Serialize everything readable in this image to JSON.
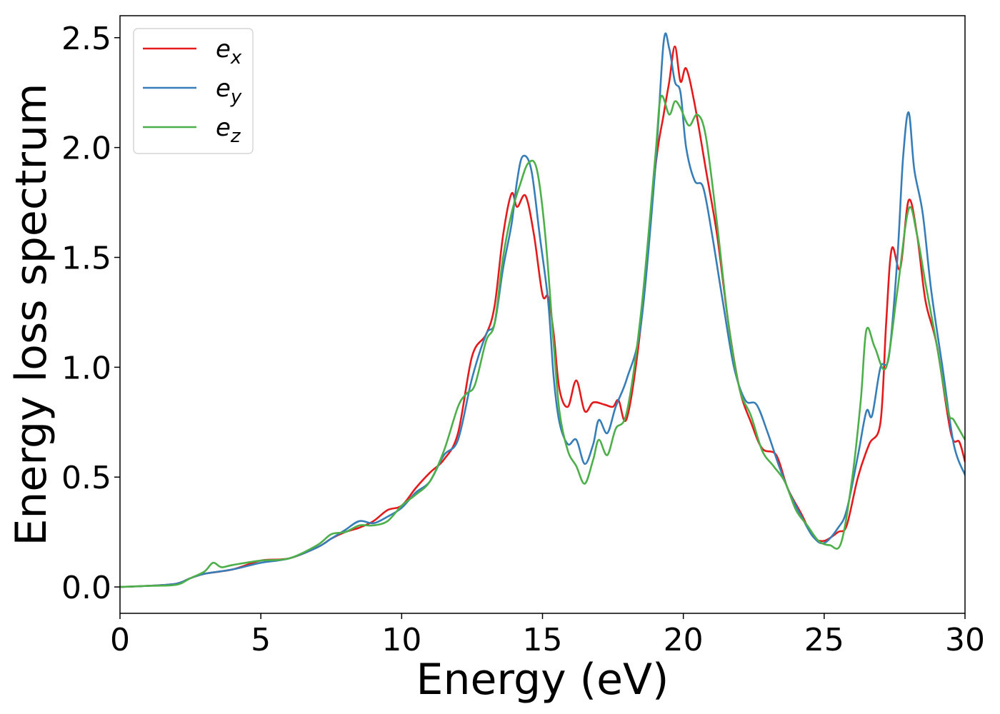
{
  "chart_data": {
    "type": "line",
    "xlabel": "Energy (eV)",
    "ylabel": "Energy loss spectrum",
    "xlim": [
      0,
      30
    ],
    "ylim": [
      -0.12,
      2.6
    ],
    "x_ticks": [
      0,
      5,
      10,
      15,
      20,
      25,
      30
    ],
    "x_tick_labels": [
      "0",
      "5",
      "10",
      "15",
      "20",
      "25",
      "30"
    ],
    "y_ticks": [
      0.0,
      0.5,
      1.0,
      1.5,
      2.0,
      2.5
    ],
    "y_tick_labels": [
      "0.0",
      "0.5",
      "1.0",
      "1.5",
      "2.0",
      "2.5"
    ],
    "grid": false,
    "legend_position": "top-left",
    "series": [
      {
        "name": "e_x",
        "label_base": "e",
        "label_sub": "x",
        "color": "#e41a1c",
        "points": [
          [
            0,
            0
          ],
          [
            1,
            0.005
          ],
          [
            2,
            0.015
          ],
          [
            2.5,
            0.04
          ],
          [
            3,
            0.06
          ],
          [
            4,
            0.08
          ],
          [
            5,
            0.12
          ],
          [
            6,
            0.13
          ],
          [
            7,
            0.18
          ],
          [
            7.5,
            0.22
          ],
          [
            8,
            0.25
          ],
          [
            8.5,
            0.27
          ],
          [
            9,
            0.3
          ],
          [
            9.5,
            0.35
          ],
          [
            10,
            0.37
          ],
          [
            10.5,
            0.45
          ],
          [
            11,
            0.52
          ],
          [
            11.5,
            0.58
          ],
          [
            12,
            0.7
          ],
          [
            12.5,
            1.05
          ],
          [
            13,
            1.15
          ],
          [
            13.3,
            1.28
          ],
          [
            13.6,
            1.6
          ],
          [
            13.9,
            1.79
          ],
          [
            14.1,
            1.73
          ],
          [
            14.4,
            1.78
          ],
          [
            14.7,
            1.6
          ],
          [
            15,
            1.33
          ],
          [
            15.2,
            1.32
          ],
          [
            15.4,
            1.15
          ],
          [
            15.6,
            0.9
          ],
          [
            15.9,
            0.82
          ],
          [
            16.2,
            0.94
          ],
          [
            16.5,
            0.8
          ],
          [
            16.8,
            0.84
          ],
          [
            17.2,
            0.83
          ],
          [
            17.5,
            0.82
          ],
          [
            17.7,
            0.85
          ],
          [
            18,
            0.77
          ],
          [
            18.5,
            1.2
          ],
          [
            19,
            1.9
          ],
          [
            19.3,
            2.15
          ],
          [
            19.5,
            2.3
          ],
          [
            19.7,
            2.46
          ],
          [
            19.9,
            2.3
          ],
          [
            20.1,
            2.36
          ],
          [
            20.4,
            2.2
          ],
          [
            20.8,
            1.9
          ],
          [
            21.2,
            1.6
          ],
          [
            21.6,
            1.2
          ],
          [
            22,
            0.9
          ],
          [
            22.4,
            0.75
          ],
          [
            22.8,
            0.63
          ],
          [
            23.3,
            0.6
          ],
          [
            23.7,
            0.45
          ],
          [
            24.2,
            0.33
          ],
          [
            24.6,
            0.23
          ],
          [
            25,
            0.21
          ],
          [
            25.5,
            0.25
          ],
          [
            25.8,
            0.28
          ],
          [
            26.2,
            0.5
          ],
          [
            26.6,
            0.65
          ],
          [
            27,
            0.75
          ],
          [
            27.2,
            1.2
          ],
          [
            27.4,
            1.54
          ],
          [
            27.7,
            1.45
          ],
          [
            28,
            1.76
          ],
          [
            28.3,
            1.6
          ],
          [
            28.6,
            1.3
          ],
          [
            29,
            1.1
          ],
          [
            29.5,
            0.7
          ],
          [
            29.8,
            0.66
          ],
          [
            30,
            0.57
          ]
        ]
      },
      {
        "name": "e_y",
        "label_base": "e",
        "label_sub": "y",
        "color": "#377eb8",
        "points": [
          [
            0,
            0
          ],
          [
            1,
            0.005
          ],
          [
            2,
            0.015
          ],
          [
            2.5,
            0.04
          ],
          [
            3,
            0.06
          ],
          [
            4,
            0.08
          ],
          [
            5,
            0.11
          ],
          [
            6,
            0.13
          ],
          [
            7,
            0.18
          ],
          [
            7.5,
            0.22
          ],
          [
            8,
            0.26
          ],
          [
            8.5,
            0.3
          ],
          [
            9,
            0.29
          ],
          [
            9.5,
            0.32
          ],
          [
            10,
            0.36
          ],
          [
            10.5,
            0.43
          ],
          [
            11,
            0.48
          ],
          [
            11.5,
            0.6
          ],
          [
            12,
            0.67
          ],
          [
            12.5,
            0.95
          ],
          [
            13,
            1.15
          ],
          [
            13.3,
            1.2
          ],
          [
            13.6,
            1.45
          ],
          [
            13.9,
            1.65
          ],
          [
            14.1,
            1.85
          ],
          [
            14.3,
            1.96
          ],
          [
            14.6,
            1.9
          ],
          [
            14.9,
            1.6
          ],
          [
            15.2,
            1.3
          ],
          [
            15.4,
            0.95
          ],
          [
            15.6,
            0.75
          ],
          [
            15.9,
            0.65
          ],
          [
            16.2,
            0.67
          ],
          [
            16.5,
            0.56
          ],
          [
            16.8,
            0.65
          ],
          [
            17,
            0.76
          ],
          [
            17.3,
            0.7
          ],
          [
            17.6,
            0.82
          ],
          [
            18,
            0.95
          ],
          [
            18.5,
            1.2
          ],
          [
            19,
            1.9
          ],
          [
            19.3,
            2.48
          ],
          [
            19.5,
            2.45
          ],
          [
            19.7,
            2.3
          ],
          [
            19.9,
            2.25
          ],
          [
            20.1,
            2.0
          ],
          [
            20.4,
            1.85
          ],
          [
            20.7,
            1.82
          ],
          [
            21,
            1.62
          ],
          [
            21.4,
            1.3
          ],
          [
            21.8,
            1.0
          ],
          [
            22.2,
            0.85
          ],
          [
            22.6,
            0.83
          ],
          [
            23,
            0.7
          ],
          [
            23.4,
            0.55
          ],
          [
            23.8,
            0.42
          ],
          [
            24.2,
            0.32
          ],
          [
            24.6,
            0.23
          ],
          [
            25,
            0.2
          ],
          [
            25.5,
            0.27
          ],
          [
            25.8,
            0.35
          ],
          [
            26.2,
            0.6
          ],
          [
            26.5,
            0.8
          ],
          [
            26.7,
            0.78
          ],
          [
            27,
            1.0
          ],
          [
            27.3,
            1.05
          ],
          [
            27.6,
            1.5
          ],
          [
            27.8,
            1.95
          ],
          [
            28,
            2.16
          ],
          [
            28.2,
            1.9
          ],
          [
            28.5,
            1.7
          ],
          [
            28.8,
            1.35
          ],
          [
            29.2,
            1.0
          ],
          [
            29.6,
            0.65
          ],
          [
            30,
            0.51
          ]
        ]
      },
      {
        "name": "e_z",
        "label_base": "e",
        "label_sub": "z",
        "color": "#4daf4a",
        "points": [
          [
            0,
            0
          ],
          [
            1,
            0.005
          ],
          [
            2,
            0.01
          ],
          [
            2.5,
            0.04
          ],
          [
            3,
            0.07
          ],
          [
            3.3,
            0.11
          ],
          [
            3.6,
            0.09
          ],
          [
            4,
            0.1
          ],
          [
            5,
            0.12
          ],
          [
            6,
            0.13
          ],
          [
            7,
            0.19
          ],
          [
            7.5,
            0.24
          ],
          [
            8,
            0.25
          ],
          [
            8.5,
            0.28
          ],
          [
            9,
            0.28
          ],
          [
            9.5,
            0.3
          ],
          [
            10,
            0.37
          ],
          [
            10.5,
            0.42
          ],
          [
            11,
            0.48
          ],
          [
            11.5,
            0.62
          ],
          [
            12,
            0.82
          ],
          [
            12.3,
            0.88
          ],
          [
            12.6,
            0.92
          ],
          [
            13,
            1.12
          ],
          [
            13.3,
            1.2
          ],
          [
            13.6,
            1.5
          ],
          [
            13.9,
            1.7
          ],
          [
            14.2,
            1.83
          ],
          [
            14.5,
            1.93
          ],
          [
            14.8,
            1.9
          ],
          [
            15.1,
            1.6
          ],
          [
            15.4,
            1.1
          ],
          [
            15.6,
            0.8
          ],
          [
            15.9,
            0.62
          ],
          [
            16.2,
            0.55
          ],
          [
            16.5,
            0.47
          ],
          [
            16.8,
            0.58
          ],
          [
            17,
            0.67
          ],
          [
            17.3,
            0.6
          ],
          [
            17.6,
            0.72
          ],
          [
            18,
            0.8
          ],
          [
            18.5,
            1.25
          ],
          [
            19,
            1.95
          ],
          [
            19.2,
            2.23
          ],
          [
            19.5,
            2.15
          ],
          [
            19.7,
            2.21
          ],
          [
            19.9,
            2.18
          ],
          [
            20.2,
            2.1
          ],
          [
            20.5,
            2.15
          ],
          [
            20.8,
            2.05
          ],
          [
            21.2,
            1.65
          ],
          [
            21.6,
            1.2
          ],
          [
            22,
            0.9
          ],
          [
            22.4,
            0.78
          ],
          [
            22.8,
            0.62
          ],
          [
            23.2,
            0.55
          ],
          [
            23.6,
            0.48
          ],
          [
            24,
            0.35
          ],
          [
            24.4,
            0.28
          ],
          [
            24.8,
            0.21
          ],
          [
            25.2,
            0.19
          ],
          [
            25.6,
            0.2
          ],
          [
            26,
            0.5
          ],
          [
            26.3,
            0.85
          ],
          [
            26.5,
            1.17
          ],
          [
            26.8,
            1.09
          ],
          [
            27.2,
            1.0
          ],
          [
            27.6,
            1.35
          ],
          [
            28,
            1.72
          ],
          [
            28.3,
            1.6
          ],
          [
            28.6,
            1.38
          ],
          [
            29,
            1.1
          ],
          [
            29.4,
            0.8
          ],
          [
            29.6,
            0.76
          ],
          [
            30,
            0.67
          ]
        ]
      }
    ]
  }
}
